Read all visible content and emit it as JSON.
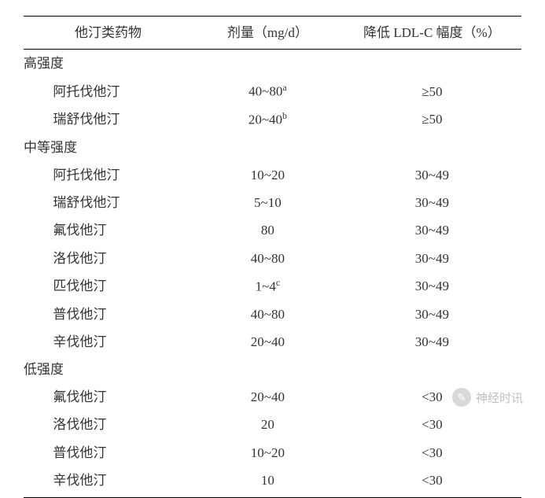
{
  "table": {
    "columns": [
      {
        "key": "drug",
        "label": "他汀类药物"
      },
      {
        "key": "dose",
        "label": "剂量（mg/d）"
      },
      {
        "key": "ldl",
        "label": "降低 LDL-C 幅度（%）"
      }
    ],
    "column_widths_pct": [
      34,
      30,
      36
    ],
    "border_color": "#000000",
    "text_color": "#333333",
    "background_color": "#ffffff",
    "font_size_pt": 13,
    "groups": [
      {
        "label": "高强度",
        "items": [
          {
            "drug": "阿托伐他汀",
            "dose": "40~80",
            "dose_sup": "a",
            "ldl": "≥50"
          },
          {
            "drug": "瑞舒伐他汀",
            "dose": "20~40",
            "dose_sup": "b",
            "ldl": "≥50"
          }
        ]
      },
      {
        "label": "中等强度",
        "items": [
          {
            "drug": "阿托伐他汀",
            "dose": "10~20",
            "ldl": "30~49"
          },
          {
            "drug": "瑞舒伐他汀",
            "dose": "5~10",
            "ldl": "30~49"
          },
          {
            "drug": "氟伐他汀",
            "dose": "80",
            "ldl": "30~49"
          },
          {
            "drug": "洛伐他汀",
            "dose": "40~80",
            "ldl": "30~49"
          },
          {
            "drug": "匹伐他汀",
            "dose": "1~4",
            "dose_sup": "c",
            "ldl": "30~49"
          },
          {
            "drug": "普伐他汀",
            "dose": "40~80",
            "ldl": "30~49"
          },
          {
            "drug": "辛伐他汀",
            "dose": "20~40",
            "ldl": "30~49"
          }
        ]
      },
      {
        "label": "低强度",
        "items": [
          {
            "drug": "氟伐他汀",
            "dose": "20~40",
            "ldl": "<30"
          },
          {
            "drug": "洛伐他汀",
            "dose": "20",
            "ldl": "<30"
          },
          {
            "drug": "普伐他汀",
            "dose": "10~20",
            "ldl": "<30"
          },
          {
            "drug": "辛伐他汀",
            "dose": "10",
            "ldl": "<30"
          }
        ]
      }
    ]
  },
  "watermark": {
    "icon": "✎",
    "text": "神经时讯",
    "color": "#bfbfbf"
  }
}
